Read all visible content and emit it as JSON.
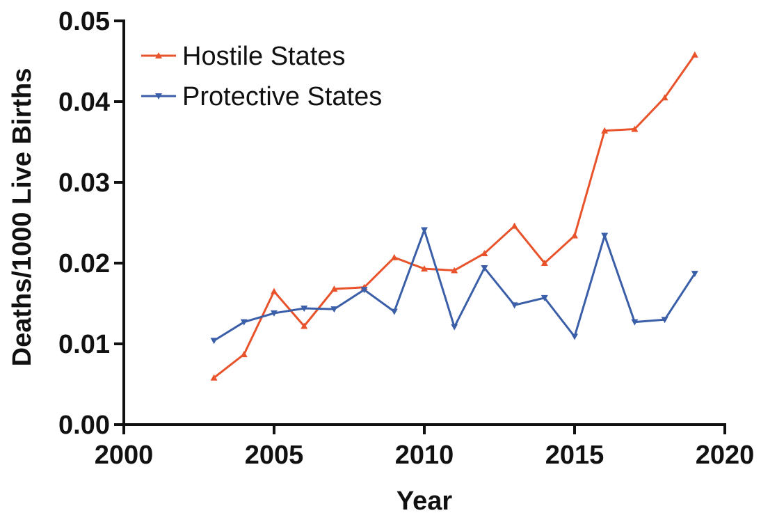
{
  "chart_data": {
    "type": "line",
    "xlabel": "Year",
    "ylabel": "Deaths/1000 Live Births",
    "xlim": [
      2000,
      2020
    ],
    "ylim": [
      0.0,
      0.05
    ],
    "xticks": [
      2000,
      2005,
      2010,
      2015,
      2020
    ],
    "yticks": [
      0.0,
      0.01,
      0.02,
      0.03,
      0.04,
      0.05
    ],
    "ytick_labels": [
      "0.00",
      "0.01",
      "0.02",
      "0.03",
      "0.04",
      "0.05"
    ],
    "xtick_labels": [
      "2000",
      "2005",
      "2010",
      "2015",
      "2020"
    ],
    "grid": false,
    "legend_position": "top-left",
    "x": [
      2003,
      2004,
      2005,
      2006,
      2007,
      2008,
      2009,
      2010,
      2011,
      2012,
      2013,
      2014,
      2015,
      2016,
      2017,
      2018,
      2019
    ],
    "series": [
      {
        "name": "Hostile States",
        "color": "#e8532b",
        "marker": "triangle-up",
        "values": [
          0.0058,
          0.0087,
          0.0165,
          0.0122,
          0.0168,
          0.017,
          0.0207,
          0.0193,
          0.0191,
          0.0212,
          0.0246,
          0.02,
          0.0234,
          0.0364,
          0.0366,
          0.0405,
          0.0458
        ]
      },
      {
        "name": "Protective States",
        "color": "#3a5ea8",
        "marker": "triangle-down",
        "values": [
          0.0104,
          0.0127,
          0.0138,
          0.0144,
          0.0143,
          0.0167,
          0.014,
          0.0241,
          0.0121,
          0.0194,
          0.0148,
          0.0157,
          0.0109,
          0.0234,
          0.0127,
          0.013,
          0.0187
        ]
      }
    ]
  }
}
